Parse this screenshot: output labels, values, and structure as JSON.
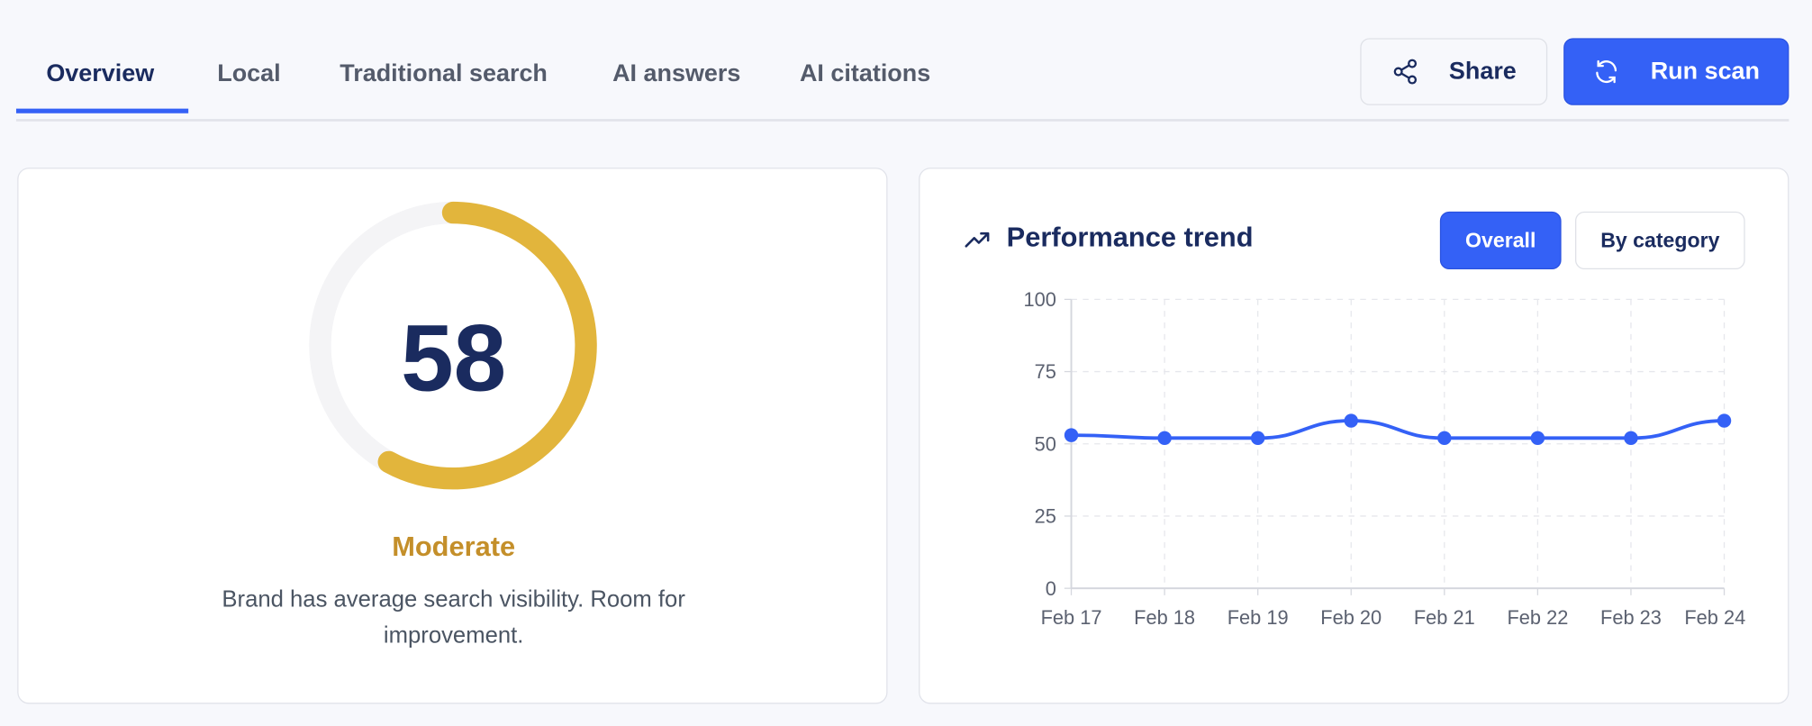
{
  "tabs": [
    {
      "label": "Overview",
      "active": true
    },
    {
      "label": "Local",
      "active": false
    },
    {
      "label": "Traditional search",
      "active": false
    },
    {
      "label": "AI answers",
      "active": false
    },
    {
      "label": "AI citations",
      "active": false
    }
  ],
  "actions": {
    "share_label": "Share",
    "share_icon": "share-icon",
    "run_scan_label": "Run scan",
    "run_scan_icon": "refresh-icon"
  },
  "score": {
    "value": "58",
    "fraction": 0.58,
    "rating": "Moderate",
    "description": "Brand has average search visibility. Room for improvement.",
    "colors": {
      "arc": "#e2b53c",
      "rating": "#c48f2a",
      "value": "#1a2b5f"
    }
  },
  "trend": {
    "title": "Performance trend",
    "icon": "trending-up-icon",
    "toggle": {
      "overall": "Overall",
      "by_category": "By category",
      "selected": "Overall"
    }
  },
  "colors": {
    "accent": "#3461f6",
    "navy": "#1a2b5f"
  },
  "chart_data": {
    "type": "line",
    "categories": [
      "Feb 17",
      "Feb 18",
      "Feb 19",
      "Feb 20",
      "Feb 21",
      "Feb 22",
      "Feb 23",
      "Feb 24"
    ],
    "values": [
      53,
      52,
      52,
      58,
      52,
      52,
      52,
      58
    ],
    "ylim": [
      0,
      100
    ],
    "yticks": [
      "0",
      "25",
      "50",
      "75",
      "100"
    ],
    "grid": true,
    "curve": "smooth",
    "color": "#3461f6"
  }
}
